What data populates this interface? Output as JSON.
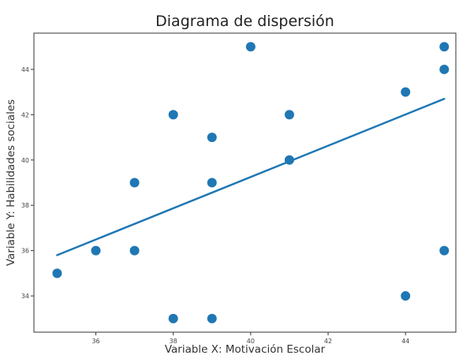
{
  "chart_data": {
    "type": "scatter",
    "title": "Diagrama de dispersión",
    "xlabel": "Variable X: Motivación Escolar",
    "ylabel": "Variable Y: Habilidades sociales",
    "xlim": [
      34.4,
      45.3
    ],
    "ylim": [
      32.4,
      45.6
    ],
    "xticks": [
      "36",
      "38",
      "40",
      "42",
      "44"
    ],
    "yticks": [
      "34",
      "36",
      "38",
      "40",
      "42",
      "44"
    ],
    "grid": false,
    "points": [
      {
        "x": 35,
        "y": 35
      },
      {
        "x": 36,
        "y": 36
      },
      {
        "x": 37,
        "y": 39
      },
      {
        "x": 37,
        "y": 36
      },
      {
        "x": 38,
        "y": 42
      },
      {
        "x": 38,
        "y": 33
      },
      {
        "x": 39,
        "y": 41
      },
      {
        "x": 39,
        "y": 39
      },
      {
        "x": 39,
        "y": 33
      },
      {
        "x": 40,
        "y": 45
      },
      {
        "x": 41,
        "y": 42
      },
      {
        "x": 41,
        "y": 40
      },
      {
        "x": 44,
        "y": 43
      },
      {
        "x": 44,
        "y": 34
      },
      {
        "x": 45,
        "y": 45
      },
      {
        "x": 45,
        "y": 44
      },
      {
        "x": 45,
        "y": 36
      }
    ],
    "trendline": {
      "x": [
        35,
        45
      ],
      "y": [
        35.8,
        42.7
      ]
    },
    "colors": {
      "points": "#1f77b4",
      "trendline": "#1f77b4"
    }
  }
}
